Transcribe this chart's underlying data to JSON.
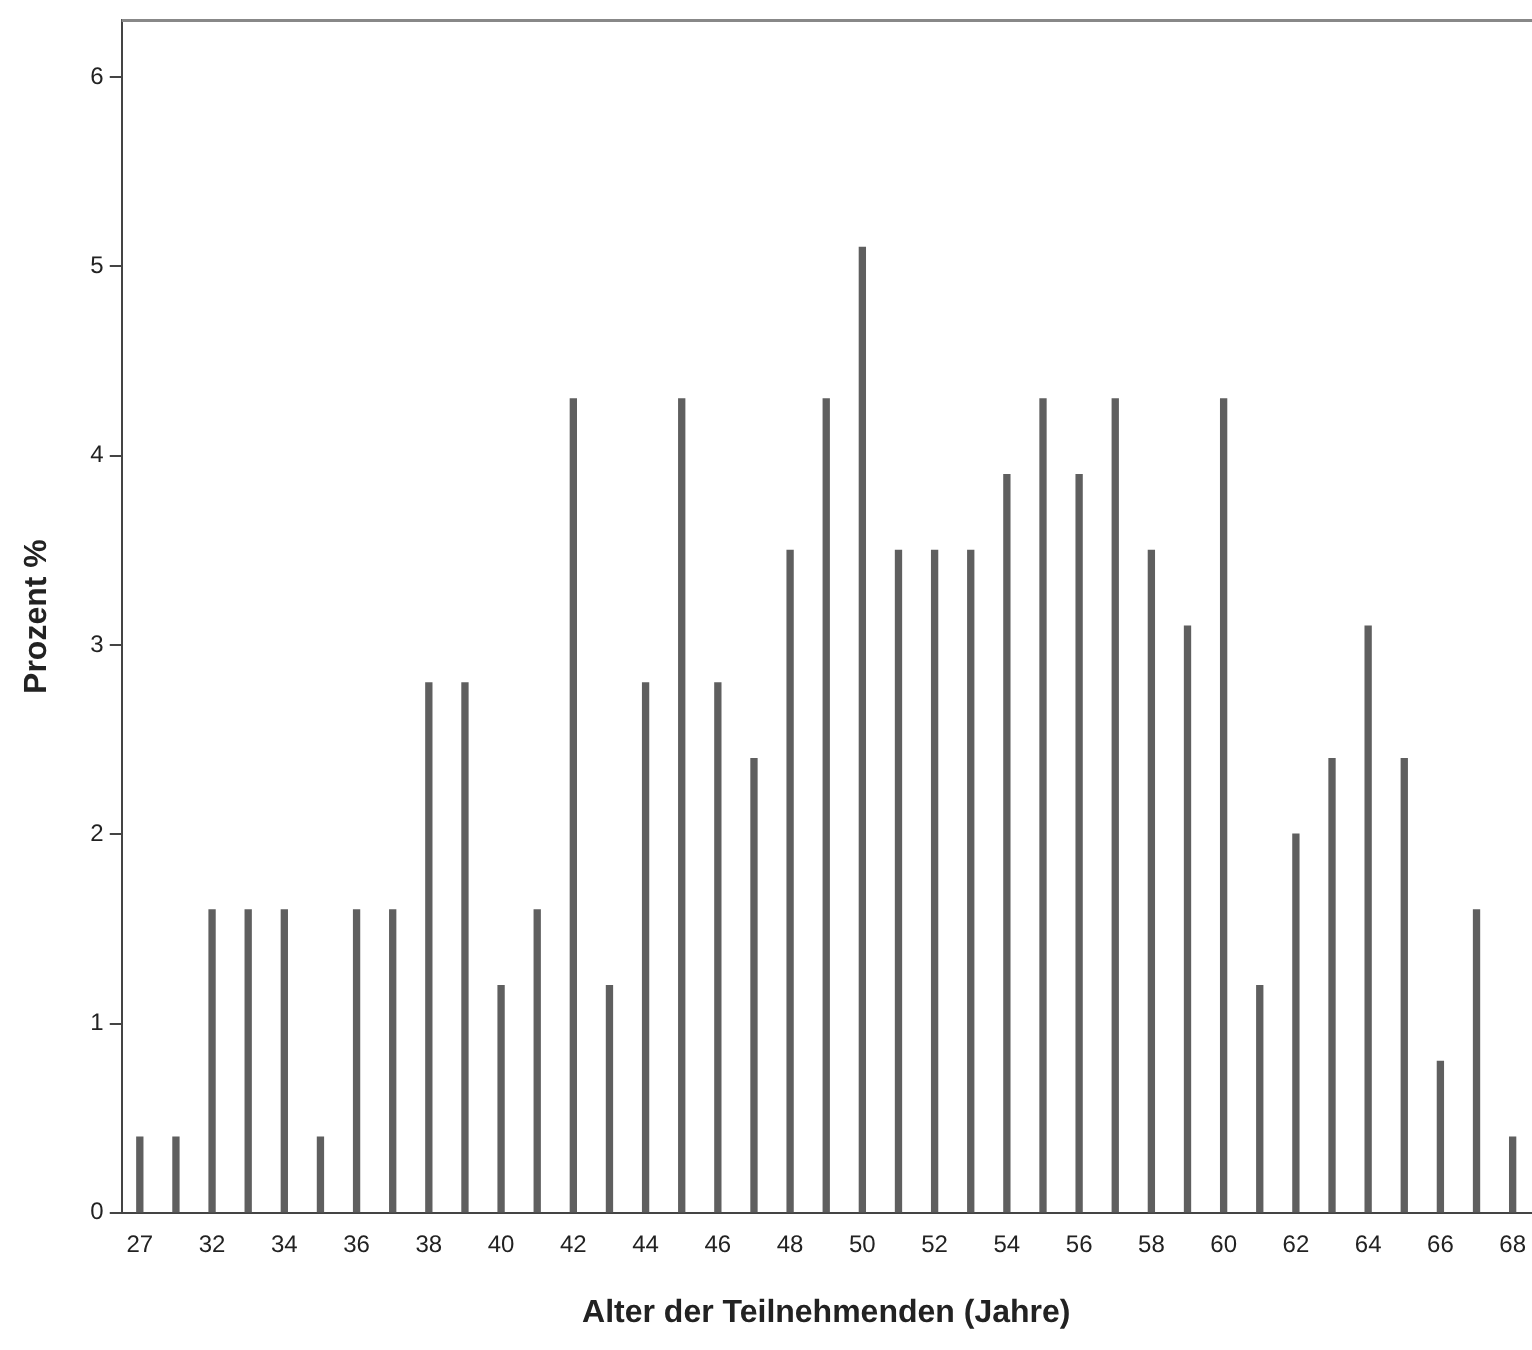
{
  "chart_data": {
    "type": "bar",
    "xlabel": "Alter der Teilnehmenden (Jahre)",
    "ylabel": "Prozent %",
    "categories": [
      "27",
      null,
      "32",
      null,
      "34",
      null,
      "36",
      null,
      "38",
      null,
      "40",
      null,
      "42",
      null,
      "44",
      null,
      "46",
      null,
      "48",
      null,
      "50",
      null,
      "52",
      null,
      "54",
      null,
      "56",
      null,
      "58",
      null,
      "60",
      null,
      "62",
      null,
      "64",
      null,
      "66",
      null,
      "68"
    ],
    "values": [
      0.4,
      0.4,
      1.6,
      1.6,
      1.6,
      0.4,
      1.6,
      1.6,
      2.8,
      2.8,
      1.2,
      1.6,
      4.3,
      1.2,
      2.8,
      4.3,
      2.8,
      2.4,
      3.5,
      4.3,
      5.1,
      3.5,
      3.5,
      3.5,
      3.9,
      4.3,
      3.9,
      4.3,
      3.5,
      3.1,
      4.3,
      1.2,
      2.0,
      2.4,
      3.1,
      2.4,
      0.8,
      1.6,
      0.4
    ],
    "color": "#5f5f5f",
    "ylim": [
      0,
      6.3
    ],
    "yticks": [
      0,
      1,
      2,
      3,
      4,
      5,
      6
    ]
  }
}
